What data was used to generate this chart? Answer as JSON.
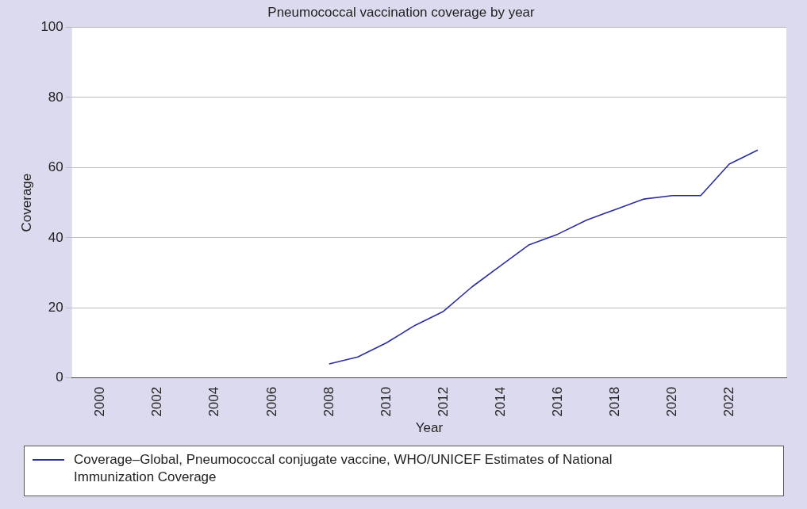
{
  "chart_data": {
    "type": "line",
    "title": "Pneumococcal vaccination coverage by year",
    "xlabel": "Year",
    "ylabel": "Coverage",
    "x": [
      2008,
      2009,
      2010,
      2011,
      2012,
      2013,
      2014,
      2015,
      2016,
      2017,
      2018,
      2019,
      2020,
      2021,
      2022,
      2023
    ],
    "series": [
      {
        "name": "Coverage–Global, Pneumococcal conjugate vaccine, WHO/UNICEF Estimates of National Immunization Coverage",
        "color": "#2e2e9a",
        "values": [
          4,
          6,
          10,
          15,
          19,
          26,
          32,
          38,
          41,
          45,
          48,
          51,
          52,
          52,
          61,
          65
        ]
      }
    ],
    "xlim": [
      1999,
      2024
    ],
    "xticks": [
      2000,
      2002,
      2004,
      2006,
      2008,
      2010,
      2012,
      2014,
      2016,
      2018,
      2020,
      2022
    ],
    "ylim": [
      0,
      100
    ],
    "yticks": [
      0,
      20,
      40,
      60,
      80,
      100
    ],
    "grid": "y",
    "legend": "bottom",
    "marker": "none",
    "line_style": "solid"
  }
}
